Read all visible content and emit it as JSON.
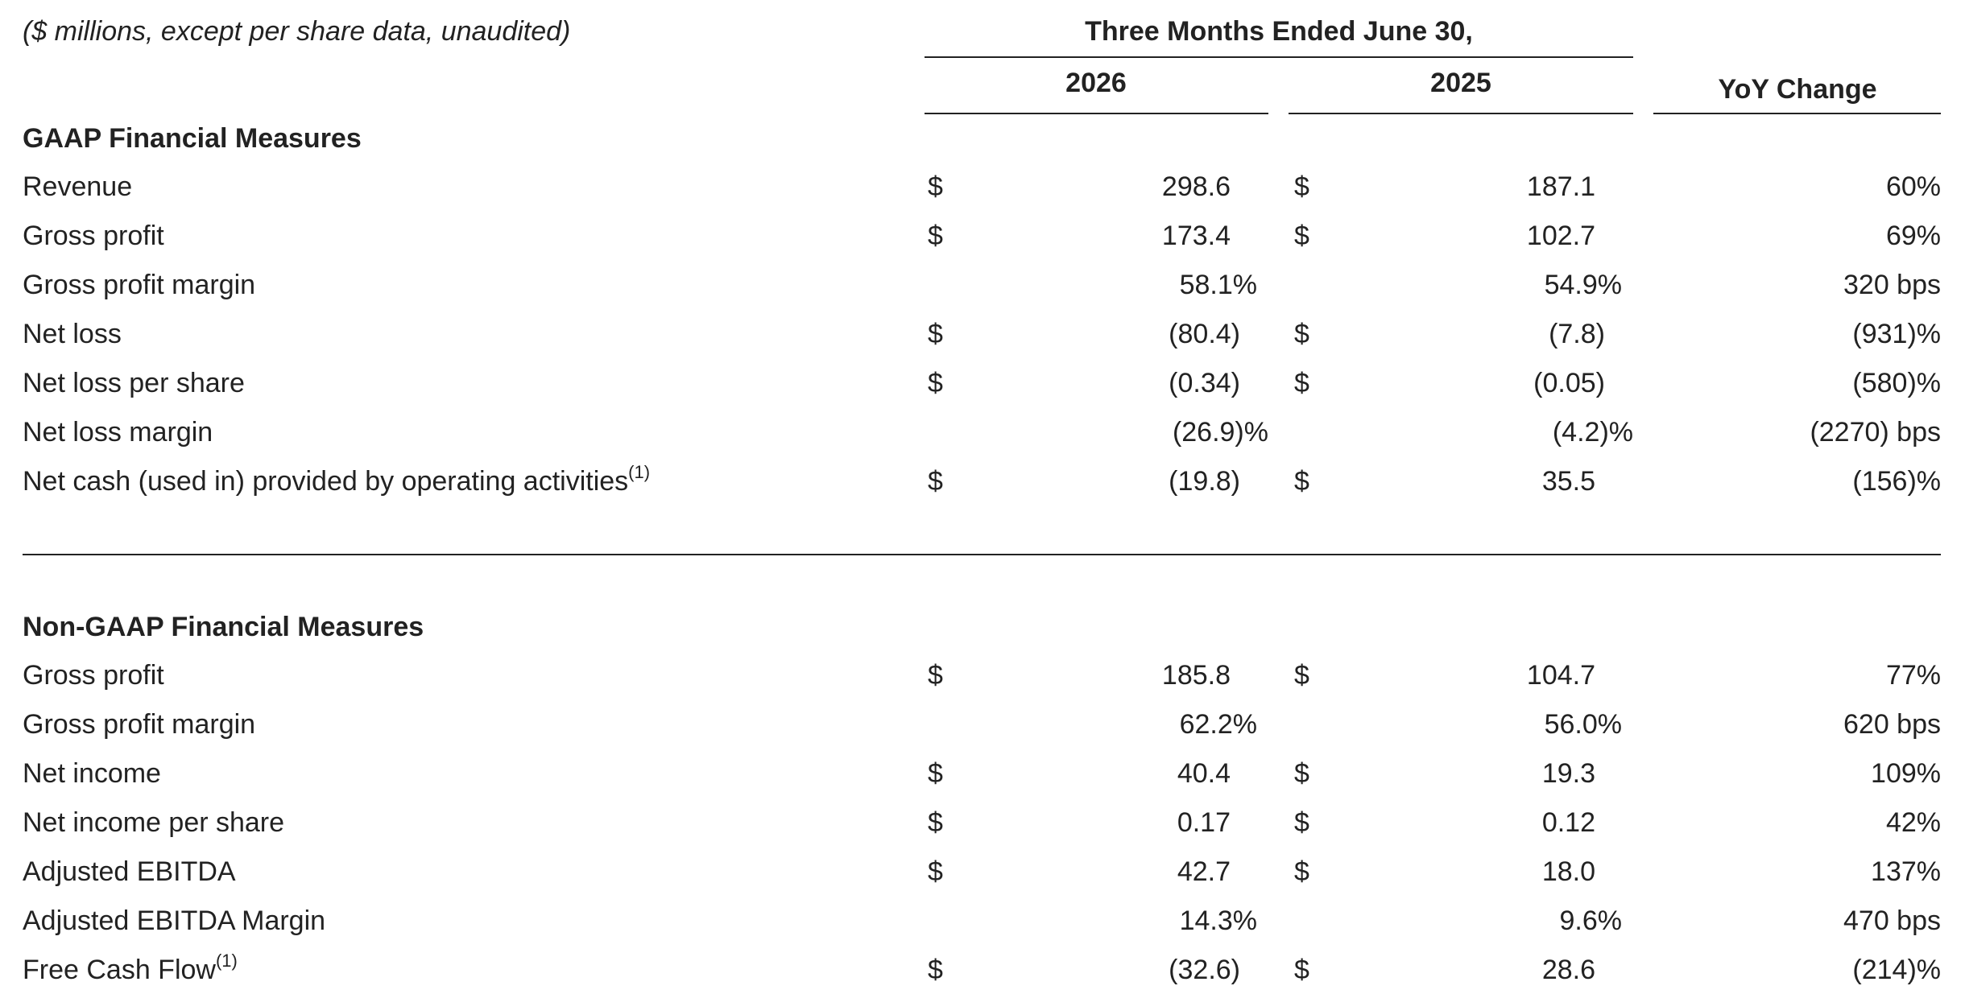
{
  "header": {
    "note": "($ millions, except per share data, unaudited)",
    "period": "Three Months Ended June 30,",
    "columns": [
      "2026",
      "2025",
      "YoY Change"
    ]
  },
  "sections": [
    {
      "title": "GAAP Financial Measures",
      "rows": [
        {
          "label": "Revenue",
          "cur_2026": "$",
          "v_2026": "298.6",
          "cur_2025": "$",
          "v_2025": "187.1",
          "yoy": "60%"
        },
        {
          "label": "Gross profit",
          "cur_2026": "$",
          "v_2026": "173.4",
          "cur_2025": "$",
          "v_2025": "102.7",
          "yoy": "69%"
        },
        {
          "label": "Gross profit margin",
          "v_2026": "58.1%",
          "v_2025": "54.9%",
          "yoy": "320 bps"
        },
        {
          "label": "Net loss",
          "cur_2026": "$",
          "v_2026": "(80.4)",
          "cur_2025": "$",
          "v_2025": "(7.8)",
          "yoy": "(931)%"
        },
        {
          "label": "Net loss per share",
          "cur_2026": "$",
          "v_2026": "(0.34)",
          "cur_2025": "$",
          "v_2025": "(0.05)",
          "yoy": "(580)%"
        },
        {
          "label": "Net loss margin",
          "v_2026": "(26.9)%",
          "v_2025": "(4.2)%",
          "yoy": "(2270) bps"
        },
        {
          "label": "Net cash (used in) provided by operating activities",
          "note": "(1)",
          "cur_2026": "$",
          "v_2026": "(19.8)",
          "cur_2025": "$",
          "v_2025": "35.5",
          "yoy": "(156)%"
        }
      ]
    },
    {
      "title": "Non-GAAP Financial Measures",
      "rows": [
        {
          "label": "Gross profit",
          "cur_2026": "$",
          "v_2026": "185.8",
          "cur_2025": "$",
          "v_2025": "104.7",
          "yoy": "77%"
        },
        {
          "label": "Gross profit margin",
          "v_2026": "62.2%",
          "v_2025": "56.0%",
          "yoy": "620 bps"
        },
        {
          "label": "Net income",
          "cur_2026": "$",
          "v_2026": "40.4",
          "cur_2025": "$",
          "v_2025": "19.3",
          "yoy": "109%"
        },
        {
          "label": "Net income per share",
          "cur_2026": "$",
          "v_2026": "0.17",
          "cur_2025": "$",
          "v_2025": "0.12",
          "yoy": "42%"
        },
        {
          "label": "Adjusted EBITDA",
          "cur_2026": "$",
          "v_2026": "42.7",
          "cur_2025": "$",
          "v_2025": "18.0",
          "yoy": "137%"
        },
        {
          "label": "Adjusted EBITDA Margin",
          "v_2026": "14.3%",
          "v_2025": "9.6%",
          "yoy": "470 bps"
        },
        {
          "label": "Free Cash Flow",
          "note": "(1)",
          "cur_2026": "$",
          "v_2026": "(32.6)",
          "cur_2025": "$",
          "v_2025": "28.6",
          "yoy": "(214)%"
        }
      ]
    }
  ]
}
